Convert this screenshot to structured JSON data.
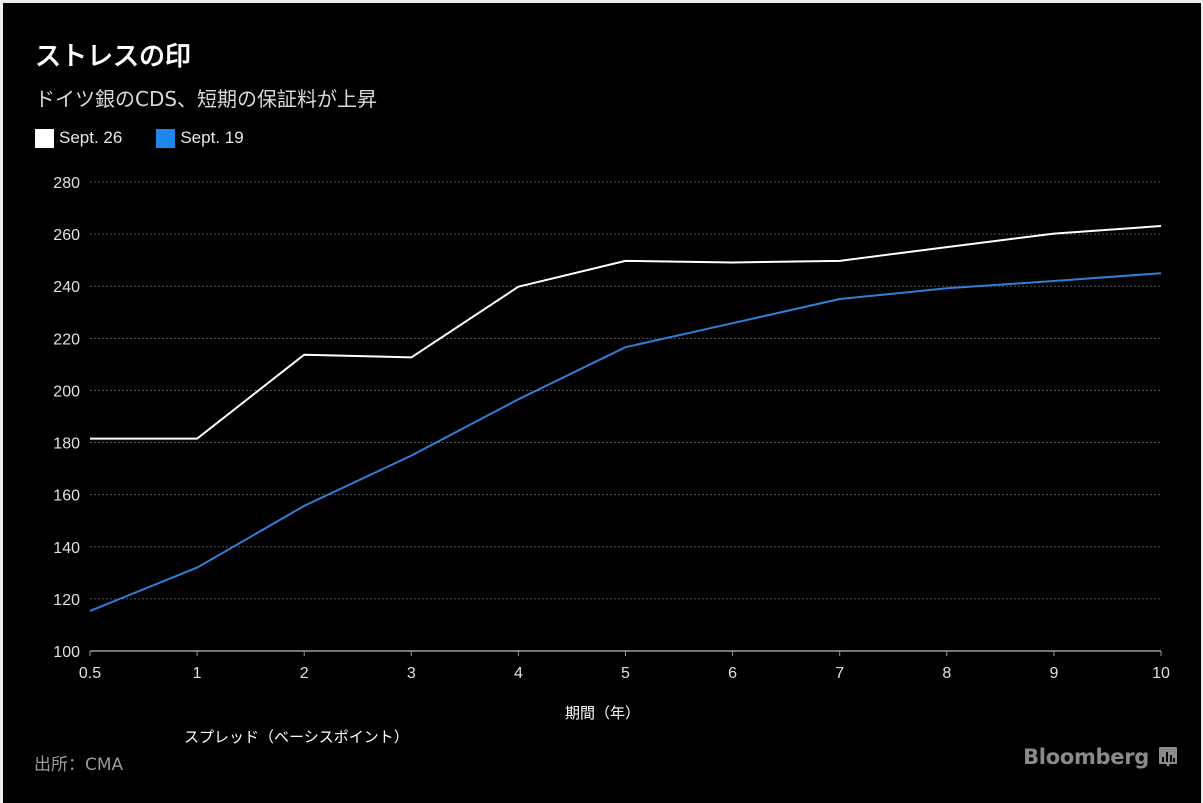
{
  "header": {
    "title": "ストレスの印",
    "subtitle": "ドイツ銀のCDS、短期の保証料が上昇"
  },
  "legend": [
    {
      "label": "Sept. 26",
      "color": "#ffffff"
    },
    {
      "label": "Sept. 19",
      "color": "#1f86ea"
    }
  ],
  "axes": {
    "xlabel": "期間（年）",
    "ylabel": "スプレッド（ベーシスポイント）",
    "yticks": [
      "100",
      "120",
      "140",
      "160",
      "180",
      "200",
      "220",
      "240",
      "260",
      "280"
    ],
    "xticks": [
      "0.5",
      "1",
      "2",
      "3",
      "4",
      "5",
      "6",
      "7",
      "8",
      "9",
      "10"
    ]
  },
  "footer": {
    "source": "出所：CMA",
    "brand": "Bloomberg",
    "brand_icon": "bloomberg-chart-icon"
  },
  "chart_data": {
    "type": "line",
    "title": "ストレスの印",
    "subtitle": "ドイツ銀のCDS、短期の保証料が上昇",
    "xlabel": "期間（年）",
    "ylabel": "スプレッド（ベーシスポイント）",
    "x": [
      0.5,
      1,
      2,
      3,
      4,
      5,
      6,
      7,
      8,
      9,
      10
    ],
    "categories": [
      "0.5",
      "1",
      "2",
      "3",
      "4",
      "5",
      "6",
      "7",
      "8",
      "9",
      "10"
    ],
    "series": [
      {
        "name": "Sept. 26",
        "color": "#ffffff",
        "values": [
          181.5,
          181.5,
          213.7,
          212.7,
          239.8,
          249.7,
          249.1,
          249.7,
          255.0,
          260.2,
          263.1
        ]
      },
      {
        "name": "Sept. 19",
        "color": "#1f86ea",
        "values": [
          115.4,
          132.0,
          155.7,
          175.0,
          196.6,
          216.6,
          225.8,
          235.1,
          239.2,
          242.0,
          245.0
        ]
      }
    ],
    "ylim": [
      100,
      280
    ],
    "yticks": [
      100,
      120,
      140,
      160,
      180,
      200,
      220,
      240,
      260,
      280
    ],
    "grid": true,
    "legend_position": "top-left",
    "source": "出所：CMA"
  }
}
